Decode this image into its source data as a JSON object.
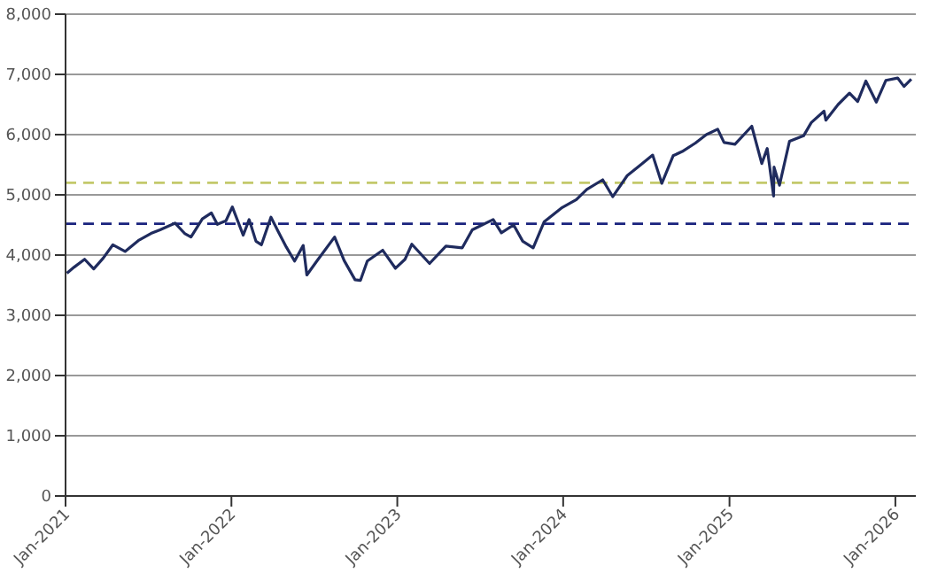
{
  "chart_data": {
    "type": "line",
    "x": [
      "2021-01-04",
      "2021-01-20",
      "2021-02-12",
      "2021-03-04",
      "2021-03-25",
      "2021-04-15",
      "2021-05-12",
      "2021-06-10",
      "2021-07-08",
      "2021-07-28",
      "2021-08-30",
      "2021-09-20",
      "2021-10-04",
      "2021-10-29",
      "2021-11-18",
      "2021-12-01",
      "2021-12-20",
      "2022-01-03",
      "2022-01-27",
      "2022-02-09",
      "2022-02-24",
      "2022-03-08",
      "2022-03-29",
      "2022-04-14",
      "2022-05-02",
      "2022-05-20",
      "2022-06-08",
      "2022-06-16",
      "2022-07-08",
      "2022-08-16",
      "2022-09-06",
      "2022-09-30",
      "2022-10-12",
      "2022-10-27",
      "2022-11-30",
      "2022-12-28",
      "2023-01-18",
      "2023-02-02",
      "2023-03-13",
      "2023-04-18",
      "2023-05-24",
      "2023-06-15",
      "2023-07-31",
      "2023-08-18",
      "2023-09-14",
      "2023-10-04",
      "2023-10-27",
      "2023-11-20",
      "2023-12-28",
      "2024-01-30",
      "2024-02-22",
      "2024-03-28",
      "2024-04-19",
      "2024-05-21",
      "2024-06-18",
      "2024-07-16",
      "2024-08-05",
      "2024-08-30",
      "2024-09-19",
      "2024-10-18",
      "2024-11-11",
      "2024-12-06",
      "2024-12-20",
      "2025-01-13",
      "2025-02-19",
      "2025-03-13",
      "2025-03-25",
      "2025-04-08",
      "2025-04-09",
      "2025-04-21",
      "2025-05-13",
      "2025-06-13",
      "2025-06-30",
      "2025-07-28",
      "2025-08-01",
      "2025-08-28",
      "2025-09-22",
      "2025-10-10",
      "2025-10-28",
      "2025-11-20",
      "2025-12-11",
      "2026-01-06",
      "2026-01-20",
      "2026-02-05"
    ],
    "series": [
      {
        "color": "#1f2b5e",
        "values": [
          3700,
          3800,
          3930,
          3770,
          3950,
          4170,
          4060,
          4240,
          4360,
          4420,
          4530,
          4360,
          4300,
          4600,
          4700,
          4510,
          4570,
          4800,
          4330,
          4590,
          4230,
          4170,
          4630,
          4390,
          4130,
          3900,
          4160,
          3670,
          3900,
          4300,
          3910,
          3590,
          3580,
          3900,
          4080,
          3780,
          3930,
          4180,
          3860,
          4150,
          4120,
          4420,
          4590,
          4370,
          4500,
          4230,
          4120,
          4550,
          4780,
          4920,
          5090,
          5250,
          4970,
          5320,
          5490,
          5660,
          5190,
          5650,
          5720,
          5860,
          6000,
          6090,
          5870,
          5840,
          6140,
          5520,
          5770,
          4980,
          5460,
          5160,
          5890,
          5980,
          6200,
          6390,
          6240,
          6500,
          6690,
          6550,
          6890,
          6540,
          6900,
          6940,
          6800,
          6920
        ]
      }
    ],
    "xlim": [
      "2021-01-01",
      "2026-02-15"
    ],
    "xticks": [
      {
        "value": "2021-01-01",
        "label": "Jan-2021"
      },
      {
        "value": "2022-01-01",
        "label": "Jan-2022"
      },
      {
        "value": "2023-01-01",
        "label": "Jan-2023"
      },
      {
        "value": "2024-01-01",
        "label": "Jan-2024"
      },
      {
        "value": "2025-01-01",
        "label": "Jan-2025"
      },
      {
        "value": "2026-01-01",
        "label": "Jan-2026"
      }
    ],
    "ylim": [
      0,
      8000
    ],
    "yticks": [
      {
        "value": 0,
        "label": "0"
      },
      {
        "value": 1000,
        "label": "1,000"
      },
      {
        "value": 2000,
        "label": "2,000"
      },
      {
        "value": 3000,
        "label": "3,000"
      },
      {
        "value": 4000,
        "label": "4,000"
      },
      {
        "value": 5000,
        "label": "5,000"
      },
      {
        "value": 6000,
        "label": "6,000"
      },
      {
        "value": 7000,
        "label": "7,000"
      },
      {
        "value": 8000,
        "label": "8,000"
      }
    ],
    "ref_lines": [
      {
        "axis": "y",
        "value": 5200,
        "color": "#c3c96b",
        "line_style": "dashed"
      },
      {
        "axis": "y",
        "value": 4520,
        "color": "#1a237e",
        "line_style": "dashed"
      }
    ],
    "grid": "y",
    "marker": "none",
    "line_style": "solid"
  }
}
